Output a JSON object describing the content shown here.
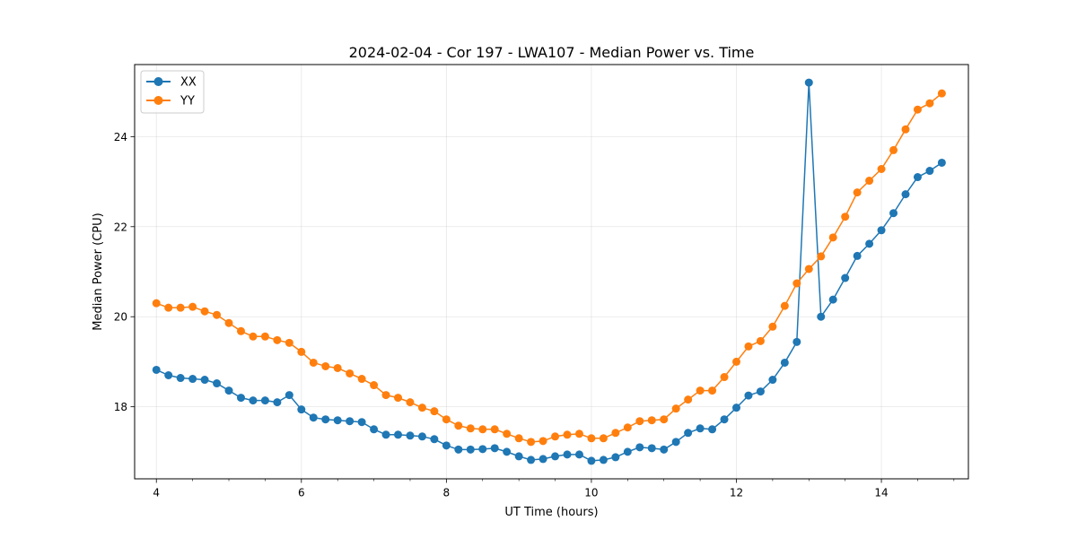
{
  "chart_data": {
    "type": "line",
    "title": "2024-02-04 - Cor 197 - LWA107 - Median Power vs. Time",
    "xlabel": "UT Time (hours)",
    "ylabel": "Median Power (CPU)",
    "xlim": [
      3.7,
      15.2
    ],
    "ylim": [
      16.4,
      25.6
    ],
    "xticks": [
      4,
      6,
      8,
      10,
      12,
      14
    ],
    "xtick_labels": [
      "4",
      "6",
      "8",
      "10",
      "12",
      "14"
    ],
    "yticks": [
      18,
      20,
      22,
      24
    ],
    "ytick_labels": [
      "18",
      "20",
      "22",
      "24"
    ],
    "grid": true,
    "legend_position": "top-left",
    "x": [
      4.0,
      4.1667,
      4.3333,
      4.5,
      4.6667,
      4.8333,
      5.0,
      5.1667,
      5.3333,
      5.5,
      5.6667,
      5.8333,
      6.0,
      6.1667,
      6.3333,
      6.5,
      6.6667,
      6.8333,
      7.0,
      7.1667,
      7.3333,
      7.5,
      7.6667,
      7.8333,
      8.0,
      8.1667,
      8.3333,
      8.5,
      8.6667,
      8.8333,
      9.0,
      9.1667,
      9.3333,
      9.5,
      9.6667,
      9.8333,
      10.0,
      10.1667,
      10.3333,
      10.5,
      10.6667,
      10.8333,
      11.0,
      11.1667,
      11.3333,
      11.5,
      11.6667,
      11.8333,
      12.0,
      12.1667,
      12.3333,
      12.5,
      12.6667,
      12.8333,
      13.0,
      13.1667,
      13.3333,
      13.5,
      13.6667,
      13.8333,
      14.0,
      14.1667,
      14.3333,
      14.5,
      14.6667,
      14.8333
    ],
    "series": [
      {
        "name": "XX",
        "color": "#1f77b4",
        "values": [
          18.82,
          18.7,
          18.64,
          18.62,
          18.6,
          18.52,
          18.36,
          18.2,
          18.14,
          18.14,
          18.1,
          18.26,
          17.94,
          17.76,
          17.72,
          17.7,
          17.68,
          17.66,
          17.5,
          17.38,
          17.38,
          17.36,
          17.34,
          17.28,
          17.14,
          17.05,
          17.05,
          17.06,
          17.08,
          17.0,
          16.9,
          16.82,
          16.84,
          16.9,
          16.94,
          16.94,
          16.8,
          16.82,
          16.88,
          17.0,
          17.1,
          17.08,
          17.05,
          17.22,
          17.42,
          17.52,
          17.5,
          17.72,
          17.98,
          18.25,
          18.34,
          18.6,
          18.98,
          19.44,
          25.2,
          20.0,
          20.38,
          20.86,
          21.35,
          21.62,
          21.92,
          22.3,
          22.72,
          23.1,
          23.24,
          23.42
        ]
      },
      {
        "name": "YY",
        "color": "#ff7f0e",
        "values": [
          20.3,
          20.2,
          20.2,
          20.22,
          20.12,
          20.04,
          19.86,
          19.68,
          19.56,
          19.56,
          19.48,
          19.42,
          19.22,
          18.98,
          18.9,
          18.86,
          18.74,
          18.62,
          18.48,
          18.26,
          18.2,
          18.1,
          17.98,
          17.9,
          17.72,
          17.58,
          17.52,
          17.5,
          17.5,
          17.4,
          17.3,
          17.22,
          17.24,
          17.34,
          17.38,
          17.4,
          17.3,
          17.3,
          17.42,
          17.54,
          17.68,
          17.7,
          17.72,
          17.96,
          18.16,
          18.36,
          18.36,
          18.66,
          19.0,
          19.34,
          19.46,
          19.78,
          20.24,
          20.74,
          21.06,
          21.34,
          21.76,
          22.22,
          22.76,
          23.02,
          23.28,
          23.7,
          24.16,
          24.6,
          24.74,
          24.96
        ]
      }
    ]
  }
}
